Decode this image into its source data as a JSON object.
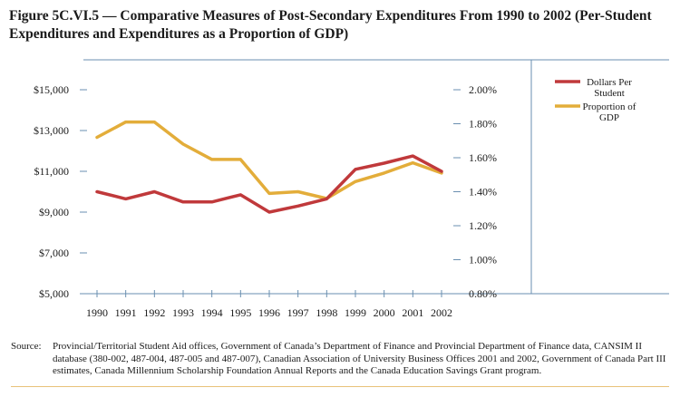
{
  "title": "Figure 5C.VI.5 — Comparative Measures of Post-Secondary Expenditures From 1990 to 2002 (Per-Student Expenditures and Expenditures as a Proportion of GDP)",
  "source": {
    "label": "Source:",
    "text": "Provincial/Territorial Student Aid offices, Government of Canada’s Department of Finance and Provincial Department of Finance data, CANSIM II database (380-002, 487-004, 487-005 and 487-007), Canadian Association of University Business Offices 2001 and 2002, Government of Canada Part III estimates, Canada Millennium Scholarship Foundation Annual Reports and the Canada Education Savings Grant program."
  },
  "colors": {
    "dollars_line": "#c0393b",
    "gdp_line": "#e3ad3a",
    "axis": "#6a8fb0",
    "rule": "#e8c27a"
  },
  "chart_data": {
    "type": "line",
    "title": "Figure 5C.VI.5 — Comparative Measures of Post-Secondary Expenditures From 1990 to 2002 (Per-Student Expenditures and Expenditures as a Proportion of GDP)",
    "x": [
      "1990",
      "1991",
      "1992",
      "1993",
      "1994",
      "1995",
      "1996",
      "1997",
      "1998",
      "1999",
      "2000",
      "2001",
      "2002"
    ],
    "y_left": {
      "ylim": [
        5000,
        15000
      ],
      "ticks": [
        5000,
        7000,
        9000,
        11000,
        13000,
        15000
      ],
      "tick_labels": [
        "$5,000",
        "$7,000",
        "$9,000",
        "$11,000",
        "$13,000",
        "$15,000"
      ]
    },
    "y_right": {
      "ylim": [
        0.8,
        2.0
      ],
      "ticks": [
        0.8,
        1.0,
        1.2,
        1.4,
        1.6,
        1.8,
        2.0
      ],
      "tick_labels": [
        "0.80%",
        "1.00%",
        "1.20%",
        "1.40%",
        "1.60%",
        "1.80%",
        "2.00%"
      ]
    },
    "series": [
      {
        "name": "Dollars Per Student",
        "legend_lines": [
          "Dollars Per",
          "Student"
        ],
        "axis": "left",
        "values": [
          10000,
          9650,
          10000,
          9500,
          9500,
          9850,
          9000,
          9300,
          9650,
          11100,
          11400,
          11750,
          11000
        ]
      },
      {
        "name": "Proportion of GDP",
        "legend_lines": [
          "Proportion of",
          "GDP"
        ],
        "axis": "right",
        "values": [
          1.72,
          1.81,
          1.81,
          1.68,
          1.59,
          1.59,
          1.39,
          1.4,
          1.36,
          1.46,
          1.51,
          1.57,
          1.51
        ]
      }
    ],
    "grid": false,
    "legend_position": "right"
  }
}
